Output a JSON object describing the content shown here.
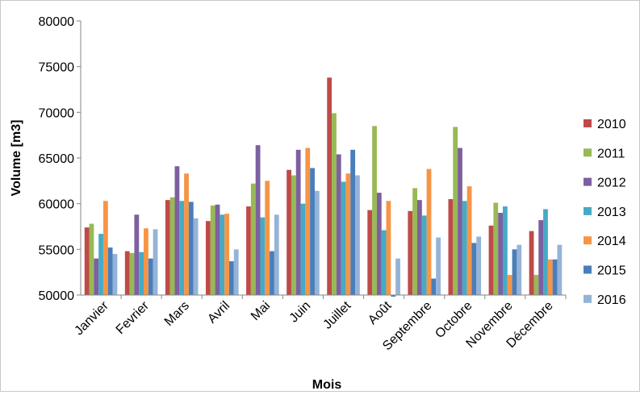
{
  "chart_data": {
    "type": "bar",
    "title": "",
    "xlabel": "Mois",
    "ylabel": "Volume  [m3]",
    "ylim": [
      50000,
      80000
    ],
    "yticks": [
      50000,
      55000,
      60000,
      65000,
      70000,
      75000,
      80000
    ],
    "grid": false,
    "legend_position": "right",
    "categories": [
      "Janvier",
      "Fevrier",
      "Mars",
      "Avril",
      "Mai",
      "Juin",
      "Juillet",
      "Août",
      "Septembre",
      "Octobre",
      "Novembre",
      "Décembre"
    ],
    "series": [
      {
        "name": "2010",
        "color": "#BE4B48",
        "values": [
          57400,
          54800,
          60400,
          58100,
          59700,
          63700,
          73800,
          59300,
          59200,
          60500,
          57600,
          57000
        ]
      },
      {
        "name": "2011",
        "color": "#98B954",
        "values": [
          57800,
          54600,
          60700,
          59800,
          62200,
          63100,
          69900,
          68500,
          61700,
          68400,
          60100,
          52200
        ]
      },
      {
        "name": "2012",
        "color": "#7D60A0",
        "values": [
          54000,
          58800,
          64100,
          59900,
          66400,
          65900,
          65400,
          61200,
          60400,
          66100,
          59000,
          58200
        ]
      },
      {
        "name": "2013",
        "color": "#46AAC5",
        "values": [
          56700,
          54700,
          60300,
          58800,
          58500,
          60000,
          62400,
          57100,
          58700,
          60300,
          59700,
          59400
        ]
      },
      {
        "name": "2014",
        "color": "#F69546",
        "values": [
          60300,
          57300,
          63300,
          58900,
          62500,
          66100,
          63300,
          60300,
          63800,
          61900,
          52200,
          53900
        ]
      },
      {
        "name": "2015",
        "color": "#4A7EBB",
        "values": [
          55200,
          54000,
          60200,
          53700,
          54800,
          63900,
          65900,
          49800,
          51800,
          55700,
          55000,
          53900
        ]
      },
      {
        "name": "2016",
        "color": "#95B3D7",
        "values": [
          54500,
          57200,
          58400,
          55000,
          58800,
          61400,
          63100,
          54000,
          56300,
          56400,
          55500,
          55500
        ]
      }
    ]
  }
}
